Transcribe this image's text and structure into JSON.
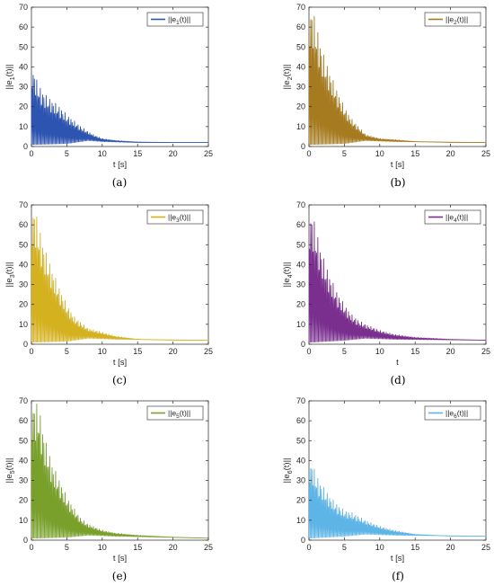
{
  "figure": {
    "background": "#ffffff"
  },
  "chart_data": [
    {
      "type": "line",
      "caption": "(a)",
      "xlabel": "t [s]",
      "ylabel": "||e",
      "ylabel_sub": "1",
      "ylabel_tail": "(t)||",
      "xlim": [
        0,
        25
      ],
      "ylim": [
        0,
        70
      ],
      "xticks": [
        0,
        5,
        10,
        15,
        20,
        25
      ],
      "yticks": [
        0,
        10,
        20,
        30,
        40,
        50,
        60,
        70
      ],
      "grid": false,
      "legend_position": "top-right",
      "series": [
        {
          "name": "||e",
          "name_sub": "1",
          "name_tail": "(t)||",
          "color": "#2e54b2",
          "envelope": {
            "x": [
              0,
              1,
              2,
              3,
              4,
              5,
              6,
              7,
              8,
              9,
              10,
              12,
              15,
              20,
              25
            ],
            "y": [
              42,
              31,
              26,
              23,
              20,
              16,
              13,
              10,
              7.5,
              5.5,
              4,
              3,
              2.3,
              2,
              2
            ]
          },
          "floor": {
            "x": [
              0,
              5,
              8,
              10,
              15,
              25
            ],
            "y": [
              1,
              1.5,
              3,
              2.5,
              2,
              2
            ]
          }
        }
      ]
    },
    {
      "type": "line",
      "caption": "(b)",
      "xlabel": "t [s]",
      "ylabel": "||e",
      "ylabel_sub": "2",
      "ylabel_tail": "(t)||",
      "xlim": [
        0,
        25
      ],
      "ylim": [
        0,
        70
      ],
      "xticks": [
        0,
        5,
        10,
        15,
        20,
        25
      ],
      "yticks": [
        0,
        10,
        20,
        30,
        40,
        50,
        60,
        70
      ],
      "grid": false,
      "legend_position": "top-right",
      "series": [
        {
          "name": "||e",
          "name_sub": "2",
          "name_tail": "(t)||",
          "color": "#a67a1f",
          "envelope": {
            "x": [
              0,
              0.5,
              1,
              2,
              3,
              4,
              5,
              6,
              7,
              8,
              10,
              12,
              15,
              20,
              25
            ],
            "y": [
              70,
              70,
              62,
              47,
              37,
              28,
              20,
              14,
              10,
              6,
              4,
              3.5,
              2.5,
              2,
              2
            ]
          },
          "floor": {
            "x": [
              0,
              5,
              8,
              12,
              25
            ],
            "y": [
              1,
              1.5,
              3,
              2.5,
              2
            ]
          }
        }
      ]
    },
    {
      "type": "line",
      "caption": "(c)",
      "xlabel": "t [s]",
      "ylabel": "||e",
      "ylabel_sub": "3",
      "ylabel_tail": "(t)||",
      "xlim": [
        0,
        25
      ],
      "ylim": [
        0,
        70
      ],
      "xticks": [
        0,
        5,
        10,
        15,
        20,
        25
      ],
      "yticks": [
        0,
        10,
        20,
        30,
        40,
        50,
        60,
        70
      ],
      "grid": false,
      "legend_position": "top-right",
      "series": [
        {
          "name": "||e",
          "name_sub": "3",
          "name_tail": "(t)||",
          "color": "#d4b11f",
          "envelope": {
            "x": [
              0,
              0.5,
              1,
              2,
              3,
              4,
              5,
              6,
              7,
              8,
              10,
              12,
              15,
              20,
              25
            ],
            "y": [
              70,
              69,
              60,
              47,
              37,
              28,
              20,
              14,
              11,
              8,
              6,
              4,
              2.5,
              2,
              2
            ]
          },
          "floor": {
            "x": [
              0,
              5,
              8,
              12,
              25
            ],
            "y": [
              1,
              1.5,
              3,
              2.5,
              2
            ]
          }
        }
      ]
    },
    {
      "type": "line",
      "caption": "(d)",
      "xlabel": "t",
      "ylabel": "||e",
      "ylabel_sub": "4",
      "ylabel_tail": "(t)||",
      "xlim": [
        0,
        25
      ],
      "ylim": [
        0,
        70
      ],
      "xticks": [
        0,
        5,
        10,
        15,
        20,
        25
      ],
      "yticks": [
        0,
        10,
        20,
        30,
        40,
        50,
        60,
        70
      ],
      "grid": false,
      "legend_position": "top-right",
      "series": [
        {
          "name": "||e",
          "name_sub": "4",
          "name_tail": "(t)||",
          "color": "#7a2f8f",
          "envelope": {
            "x": [
              0,
              0.5,
              1,
              2,
              3,
              4,
              5,
              6,
              7,
              8,
              10,
              12,
              15,
              20,
              25
            ],
            "y": [
              67,
              66,
              58,
              44,
              34,
              26,
              20,
              15,
              12,
              10,
              7,
              5,
              3.5,
              2.5,
              2
            ]
          },
          "floor": {
            "x": [
              0,
              5,
              8,
              12,
              25
            ],
            "y": [
              1,
              2,
              3,
              2.5,
              2
            ]
          }
        }
      ]
    },
    {
      "type": "line",
      "caption": "(e)",
      "xlabel": "t [s]",
      "ylabel": "||e",
      "ylabel_sub": "5",
      "ylabel_tail": "(t)||",
      "xlim": [
        0,
        25
      ],
      "ylim": [
        0,
        70
      ],
      "xticks": [
        0,
        5,
        10,
        15,
        20,
        25
      ],
      "yticks": [
        0,
        10,
        20,
        30,
        40,
        50,
        60,
        70
      ],
      "grid": false,
      "legend_position": "top-right",
      "series": [
        {
          "name": "||e",
          "name_sub": "5",
          "name_tail": "(t)||",
          "color": "#78a02b",
          "envelope": {
            "x": [
              0,
              0.5,
              1,
              2,
              3,
              4,
              5,
              6,
              7,
              8,
              10,
              12,
              15,
              20,
              25
            ],
            "y": [
              70,
              70,
              68,
              50,
              38,
              30,
              22,
              16,
              11,
              8,
              5,
              3.5,
              2.5,
              1.5,
              1
            ]
          },
          "floor": {
            "x": [
              0,
              5,
              8,
              12,
              25
            ],
            "y": [
              1,
              1.5,
              2.5,
              2,
              1
            ]
          }
        }
      ]
    },
    {
      "type": "line",
      "caption": "(f)",
      "xlabel": "t [s]",
      "ylabel": "||e",
      "ylabel_sub": "6",
      "ylabel_tail": "(t)||",
      "xlim": [
        0,
        25
      ],
      "ylim": [
        0,
        70
      ],
      "xticks": [
        0,
        5,
        10,
        15,
        20,
        25
      ],
      "yticks": [
        0,
        10,
        20,
        30,
        40,
        50,
        60,
        70
      ],
      "grid": false,
      "legend_position": "top-right",
      "series": [
        {
          "name": "||e",
          "name_sub": "6",
          "name_tail": "(t)||",
          "color": "#5db4e6",
          "envelope": {
            "x": [
              0,
              0.5,
              1,
              2,
              3,
              4,
              5,
              6,
              7,
              8,
              10,
              12,
              15,
              20,
              25
            ],
            "y": [
              40,
              39,
              33,
              27,
              22,
              18,
              15,
              14,
              12,
              10,
              7,
              5,
              3,
              2,
              2
            ]
          },
          "floor": {
            "x": [
              0,
              5,
              8,
              12,
              25
            ],
            "y": [
              1,
              2,
              3,
              2.5,
              2
            ]
          }
        }
      ]
    }
  ]
}
